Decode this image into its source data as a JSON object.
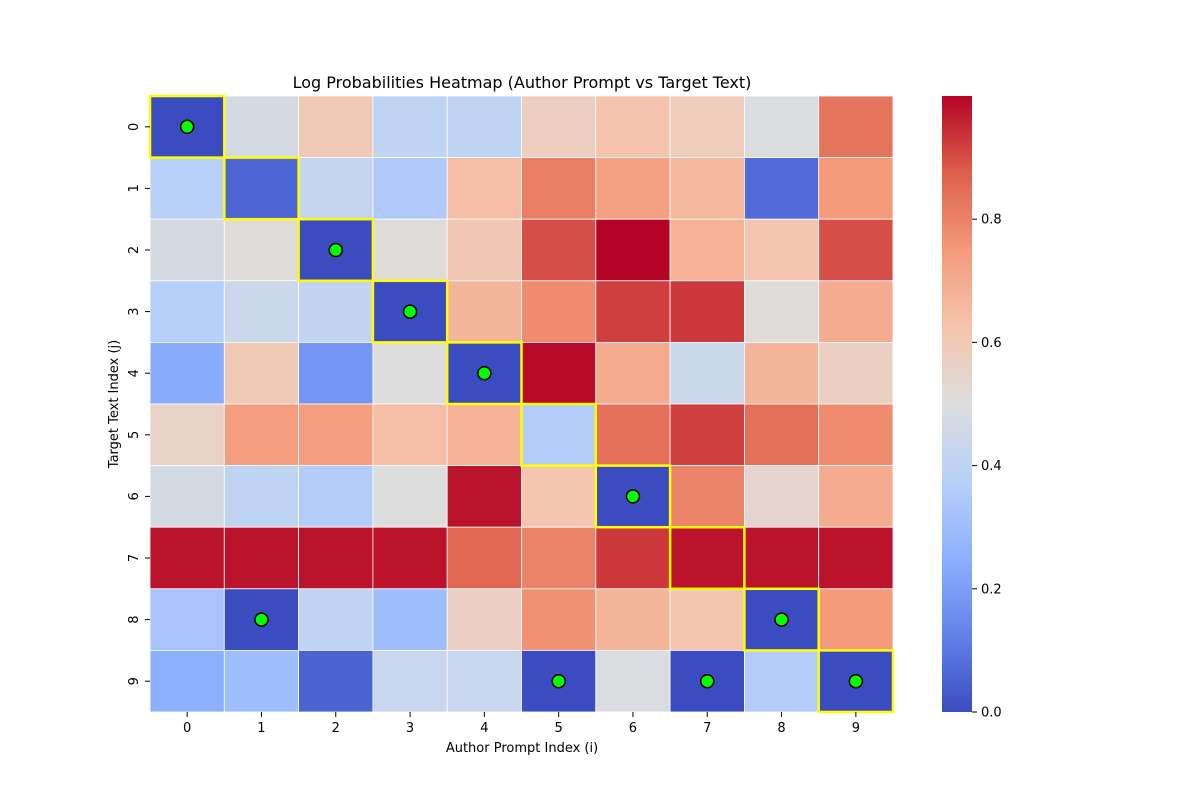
{
  "chart_data": {
    "type": "heatmap",
    "title": "Log Probabilities Heatmap (Author Prompt vs Target Text)",
    "xlabel": "Author Prompt Index (i)",
    "ylabel": "Target Text Index (j)",
    "x_categories": [
      "0",
      "1",
      "2",
      "3",
      "4",
      "5",
      "6",
      "7",
      "8",
      "9"
    ],
    "y_categories": [
      "0",
      "1",
      "2",
      "3",
      "4",
      "5",
      "6",
      "7",
      "8",
      "9"
    ],
    "colormap": "coolwarm",
    "color_range": [
      0.0,
      1.0
    ],
    "colorbar_ticks": [
      "0.0",
      "0.2",
      "0.4",
      "0.6",
      "0.8"
    ],
    "colorbar_tick_values": [
      0.0,
      0.2,
      0.4,
      0.6,
      0.8
    ],
    "values": [
      [
        0.0,
        0.47,
        0.6,
        0.4,
        0.4,
        0.58,
        0.63,
        0.59,
        0.49,
        0.83
      ],
      [
        0.38,
        0.06,
        0.42,
        0.35,
        0.64,
        0.81,
        0.73,
        0.66,
        0.07,
        0.75
      ],
      [
        0.47,
        0.51,
        0.0,
        0.51,
        0.61,
        0.9,
        1.0,
        0.68,
        0.62,
        0.9
      ],
      [
        0.37,
        0.44,
        0.41,
        0.0,
        0.67,
        0.78,
        0.92,
        0.93,
        0.51,
        0.7
      ],
      [
        0.24,
        0.6,
        0.18,
        0.5,
        0.0,
        0.99,
        0.7,
        0.44,
        0.67,
        0.57
      ],
      [
        0.56,
        0.74,
        0.74,
        0.64,
        0.68,
        0.36,
        0.84,
        0.92,
        0.84,
        0.78
      ],
      [
        0.47,
        0.4,
        0.36,
        0.5,
        0.98,
        0.62,
        0.0,
        0.8,
        0.54,
        0.7
      ],
      [
        0.98,
        0.98,
        0.98,
        0.98,
        0.86,
        0.8,
        0.93,
        0.98,
        0.98,
        0.98
      ],
      [
        0.33,
        0.0,
        0.4,
        0.3,
        0.57,
        0.77,
        0.67,
        0.62,
        0.0,
        0.75
      ],
      [
        0.25,
        0.3,
        0.05,
        0.43,
        0.43,
        0.0,
        0.49,
        0.0,
        0.36,
        0.0
      ]
    ],
    "highlighted_cells": [
      [
        0,
        0
      ],
      [
        1,
        1
      ],
      [
        2,
        2
      ],
      [
        3,
        3
      ],
      [
        4,
        4
      ],
      [
        5,
        5
      ],
      [
        6,
        6
      ],
      [
        7,
        7
      ],
      [
        8,
        8
      ],
      [
        9,
        9
      ]
    ],
    "highlight_color": "#ffff00",
    "markers": [
      [
        0,
        0
      ],
      [
        2,
        2
      ],
      [
        3,
        3
      ],
      [
        4,
        4
      ],
      [
        6,
        6
      ],
      [
        8,
        1
      ],
      [
        8,
        8
      ],
      [
        9,
        5
      ],
      [
        9,
        7
      ],
      [
        9,
        9
      ]
    ],
    "marker_color": "#00ff00",
    "grid_lines": true
  }
}
